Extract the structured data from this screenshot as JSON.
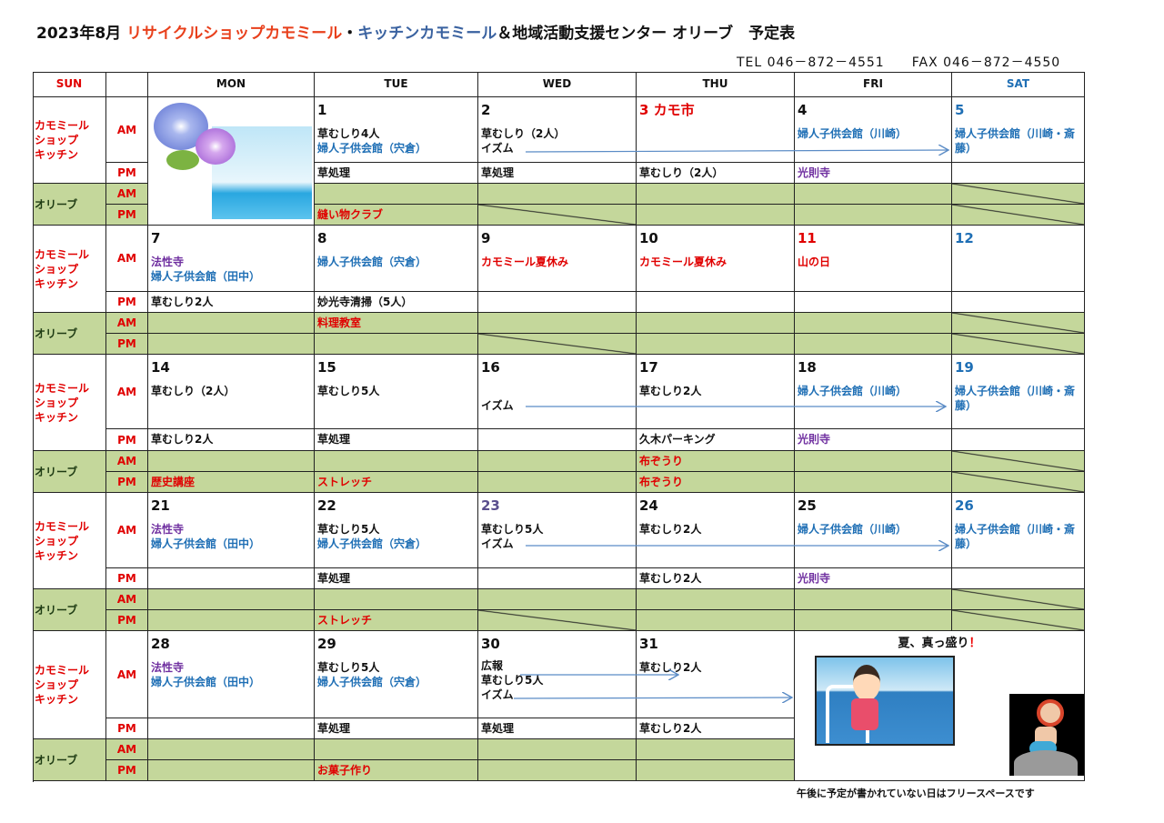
{
  "title": {
    "prefix": "2023年8月 ",
    "shop": "リサイクルショップカモミール",
    "dot": "・",
    "kitchen": "キッチンカモミール",
    "rest": "＆地域活動支援センター オリーブ　予定表"
  },
  "contact": {
    "tel": "TEL 046－872－4551",
    "fax": "FAX 046－872－4550"
  },
  "colors": {
    "k": "#111111",
    "b": "#1f6fb5",
    "p": "#7030a0",
    "r": "#e00000",
    "g": "#5a4f8e",
    "title_red": "#e8401c",
    "title_blue": "#3a62a0",
    "olive_bg": "#c4d79b"
  },
  "headers": [
    {
      "label": "SUN",
      "c": "r"
    },
    {
      "label": "",
      "c": "k"
    },
    {
      "label": "MON",
      "c": "k"
    },
    {
      "label": "TUE",
      "c": "k"
    },
    {
      "label": "WED",
      "c": "k"
    },
    {
      "label": "THU",
      "c": "k"
    },
    {
      "label": "FRI",
      "c": "k"
    },
    {
      "label": "SAT",
      "c": "b"
    }
  ],
  "row_labels": {
    "kamomile": "カモミール\nショップ\nキッチン",
    "olive": "オリーブ",
    "am": "AM",
    "pm": "PM"
  },
  "weeks": [
    {
      "days": [
        {
          "picture": "morning-glory-sea"
        },
        {
          "date": "1",
          "dc": "k",
          "am": [
            {
              "t": "草むしり4人",
              "c": "k"
            },
            {
              "t": "婦人子供会館（宍倉）",
              "c": "b"
            }
          ],
          "pm": [
            {
              "t": "草処理",
              "c": "k"
            }
          ],
          "oam": [],
          "opm": [
            {
              "t": "縫い物クラブ",
              "c": "r"
            }
          ]
        },
        {
          "date": "2",
          "dc": "k",
          "am": [
            {
              "t": "草むしり（2人）",
              "c": "k"
            },
            {
              "t": "イズム",
              "c": "k"
            }
          ],
          "pm": [
            {
              "t": "草処理",
              "c": "k"
            }
          ],
          "oam": [],
          "opm": [],
          "opm_diag": true
        },
        {
          "date": "3 カモ市",
          "dc": "r",
          "am": [],
          "pm": [
            {
              "t": "草むしり（2人）",
              "c": "k"
            }
          ],
          "oam": [],
          "opm": []
        },
        {
          "date": "4",
          "dc": "k",
          "am": [
            {
              "t": "婦人子供会館（川崎）",
              "c": "b"
            }
          ],
          "pm": [
            {
              "t": "光則寺",
              "c": "p"
            }
          ],
          "oam": [],
          "opm": []
        },
        {
          "date": "5",
          "dc": "b",
          "am": [
            {
              "t": "婦人子供会館（川崎・斎藤）",
              "c": "b"
            }
          ],
          "pm": [],
          "oam": [],
          "opm": [],
          "oam_diag": true,
          "opm_diag": true
        }
      ]
    },
    {
      "days": [
        {
          "date": "7",
          "dc": "k",
          "am": [
            {
              "t": "法性寺",
              "c": "p"
            },
            {
              "t": "婦人子供会館（田中）",
              "c": "b"
            }
          ],
          "pm": [
            {
              "t": "草むしり2人",
              "c": "k"
            }
          ],
          "oam": [],
          "opm": []
        },
        {
          "date": "8",
          "dc": "k",
          "am": [
            {
              "t": "婦人子供会館（宍倉）",
              "c": "b"
            }
          ],
          "pm": [
            {
              "t": "妙光寺清掃（5人）",
              "c": "k"
            }
          ],
          "oam": [
            {
              "t": "料理教室",
              "c": "r"
            }
          ],
          "opm": []
        },
        {
          "date": "9",
          "dc": "k",
          "am": [
            {
              "t": "カモミール夏休み",
              "c": "r"
            }
          ],
          "pm": [],
          "oam": [],
          "opm": [],
          "opm_diag": true
        },
        {
          "date": "10",
          "dc": "k",
          "am": [
            {
              "t": "カモミール夏休み",
              "c": "r"
            }
          ],
          "pm": [],
          "oam": [],
          "opm": []
        },
        {
          "date": "11",
          "dc": "r",
          "am": [
            {
              "t": "山の日",
              "c": "r"
            }
          ],
          "pm": [],
          "oam": [],
          "opm": []
        },
        {
          "date": "12",
          "dc": "b",
          "am": [],
          "pm": [],
          "oam": [],
          "opm": [],
          "oam_diag": true,
          "opm_diag": true
        }
      ]
    },
    {
      "days": [
        {
          "date": "14",
          "dc": "k",
          "am": [
            {
              "t": "草むしり（2人）",
              "c": "k"
            }
          ],
          "pm": [
            {
              "t": "草むしり2人",
              "c": "k"
            }
          ],
          "oam": [],
          "opm": [
            {
              "t": "歴史講座",
              "c": "r"
            }
          ]
        },
        {
          "date": "15",
          "dc": "k",
          "am": [
            {
              "t": "草むしり5人",
              "c": "k"
            }
          ],
          "pm": [
            {
              "t": "草処理",
              "c": "k"
            }
          ],
          "oam": [],
          "opm": [
            {
              "t": "ストレッチ",
              "c": "r"
            }
          ]
        },
        {
          "date": "16",
          "dc": "k",
          "am": [
            {
              "t": "",
              "c": "k"
            },
            {
              "t": "イズム",
              "c": "k"
            }
          ],
          "pm": [],
          "oam": [],
          "opm": []
        },
        {
          "date": "17",
          "dc": "k",
          "am": [
            {
              "t": "草むしり2人",
              "c": "k"
            }
          ],
          "pm": [
            {
              "t": "久木パーキング",
              "c": "k"
            }
          ],
          "oam": [
            {
              "t": "布ぞうり",
              "c": "r"
            }
          ],
          "opm": [
            {
              "t": "布ぞうり",
              "c": "r"
            }
          ]
        },
        {
          "date": "18",
          "dc": "k",
          "am": [
            {
              "t": "婦人子供会館（川崎）",
              "c": "b"
            }
          ],
          "pm": [
            {
              "t": "光則寺",
              "c": "p"
            }
          ],
          "oam": [],
          "opm": []
        },
        {
          "date": "19",
          "dc": "b",
          "am": [
            {
              "t": "婦人子供会館（川崎・斎藤）",
              "c": "b"
            }
          ],
          "pm": [],
          "oam": [],
          "opm": [],
          "oam_diag": true,
          "opm_diag": true
        }
      ]
    },
    {
      "days": [
        {
          "date": "21",
          "dc": "k",
          "am": [
            {
              "t": "法性寺",
              "c": "p"
            },
            {
              "t": "婦人子供会館（田中）",
              "c": "b"
            }
          ],
          "pm": [],
          "oam": [],
          "opm": []
        },
        {
          "date": "22",
          "dc": "k",
          "am": [
            {
              "t": "草むしり5人",
              "c": "k"
            },
            {
              "t": "婦人子供会館（宍倉）",
              "c": "b"
            }
          ],
          "pm": [
            {
              "t": "草処理",
              "c": "k"
            }
          ],
          "oam": [],
          "opm": [
            {
              "t": "ストレッチ",
              "c": "r"
            }
          ]
        },
        {
          "date": "23",
          "dc": "g",
          "am": [
            {
              "t": "草むしり5人",
              "c": "k"
            },
            {
              "t": "イズム",
              "c": "k"
            }
          ],
          "pm": [],
          "oam": [],
          "opm": [],
          "opm_diag": true
        },
        {
          "date": "24",
          "dc": "k",
          "am": [
            {
              "t": "草むしり2人",
              "c": "k"
            }
          ],
          "pm": [
            {
              "t": "草むしり2人",
              "c": "k"
            }
          ],
          "oam": [],
          "opm": []
        },
        {
          "date": "25",
          "dc": "k",
          "am": [
            {
              "t": "婦人子供会館（川崎）",
              "c": "b"
            }
          ],
          "pm": [
            {
              "t": "光則寺",
              "c": "p"
            }
          ],
          "oam": [],
          "opm": []
        },
        {
          "date": "26",
          "dc": "b",
          "am": [
            {
              "t": "婦人子供会館（川崎・斎藤）",
              "c": "b"
            }
          ],
          "pm": [],
          "oam": [],
          "opm": [],
          "oam_diag": true,
          "opm_diag": true
        }
      ]
    },
    {
      "days": [
        {
          "date": "28",
          "dc": "k",
          "am": [
            {
              "t": "法性寺",
              "c": "p"
            },
            {
              "t": "婦人子供会館（田中）",
              "c": "b"
            }
          ],
          "pm": [],
          "oam": [],
          "opm": []
        },
        {
          "date": "29",
          "dc": "k",
          "am": [
            {
              "t": "草むしり5人",
              "c": "k"
            },
            {
              "t": "婦人子供会館（宍倉）",
              "c": "b"
            }
          ],
          "pm": [
            {
              "t": "草処理",
              "c": "k"
            }
          ],
          "oam": [],
          "opm": [
            {
              "t": "お菓子作り",
              "c": "r"
            }
          ]
        },
        {
          "date": "30",
          "dc": "k",
          "am": [
            {
              "t": "広報",
              "c": "k"
            },
            {
              "t": "草むしり5人",
              "c": "k"
            },
            {
              "t": "イズム",
              "c": "k"
            }
          ],
          "pm": [
            {
              "t": "草処理",
              "c": "k"
            }
          ],
          "oam": [],
          "opm": []
        },
        {
          "date": "31",
          "dc": "k",
          "am": [
            {
              "t": "草むしり2人",
              "c": "k"
            }
          ],
          "pm": [
            {
              "t": "草むしり2人",
              "c": "k"
            }
          ],
          "oam": [],
          "opm": []
        }
      ]
    }
  ],
  "summer_box": {
    "title": "夏、真っ盛り",
    "exclaim": "！",
    "pictures": [
      "girl-on-ship",
      "mermaid-on-rock"
    ]
  },
  "footnote": "午後に予定が書かれていない日はフリースペースです"
}
